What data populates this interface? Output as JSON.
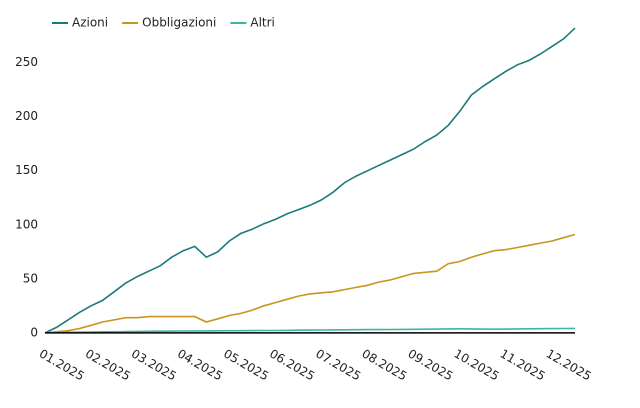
{
  "chart_data": {
    "type": "line",
    "categories": [
      "01.2025",
      null,
      null,
      null,
      "02.2025",
      null,
      null,
      null,
      "03.2025",
      null,
      null,
      null,
      "04.2025",
      null,
      null,
      null,
      "05.2025",
      null,
      null,
      null,
      "06.2025",
      null,
      null,
      null,
      "07.2025",
      null,
      null,
      null,
      "08.2025",
      null,
      null,
      null,
      "09.2025",
      null,
      null,
      null,
      "10.2025",
      null,
      null,
      null,
      "11.2025",
      null,
      null,
      null,
      "12.2025",
      null,
      null
    ],
    "series": [
      {
        "name": "Azioni",
        "color": "#1b7b7a",
        "values": [
          0,
          5,
          12,
          19,
          25,
          30,
          38,
          46,
          52,
          57,
          62,
          70,
          76,
          80,
          70,
          75,
          85,
          92,
          96,
          101,
          105,
          110,
          114,
          118,
          123,
          130,
          139,
          145,
          150,
          155,
          160,
          165,
          170,
          177,
          183,
          192,
          205,
          220,
          228,
          235,
          242,
          248,
          252,
          258,
          265,
          272,
          282
        ]
      },
      {
        "name": "Obbligazioni",
        "color": "#c8951e",
        "values": [
          0,
          1,
          2,
          4,
          7,
          10,
          12,
          14,
          14,
          15,
          15,
          15,
          15,
          15,
          10,
          13,
          16,
          18,
          21,
          25,
          28,
          31,
          34,
          36,
          37,
          38,
          40,
          42,
          44,
          47,
          49,
          52,
          55,
          56,
          57,
          64,
          66,
          70,
          73,
          76,
          77,
          79,
          81,
          83,
          85,
          88,
          91
        ]
      },
      {
        "name": "Altri",
        "color": "#3db5a6",
        "values": [
          0,
          0.3,
          0.5,
          0.6,
          0.8,
          1,
          1,
          1.2,
          1.3,
          1.4,
          1.5,
          1.6,
          1.7,
          1.8,
          1.8,
          1.9,
          2,
          2,
          2.1,
          2.2,
          2.2,
          2.3,
          2.4,
          2.5,
          2.6,
          2.7,
          2.8,
          2.9,
          3,
          3,
          3.1,
          3.2,
          3.3,
          3.4,
          3.5,
          3.6,
          3.7,
          3.6,
          3.5,
          3.4,
          3.5,
          3.6,
          3.7,
          3.8,
          3.9,
          4,
          4.1
        ]
      }
    ],
    "ylim": [
      -2,
      295
    ],
    "yticks": [
      0,
      50,
      100,
      150,
      200,
      250
    ],
    "grid": false
  }
}
